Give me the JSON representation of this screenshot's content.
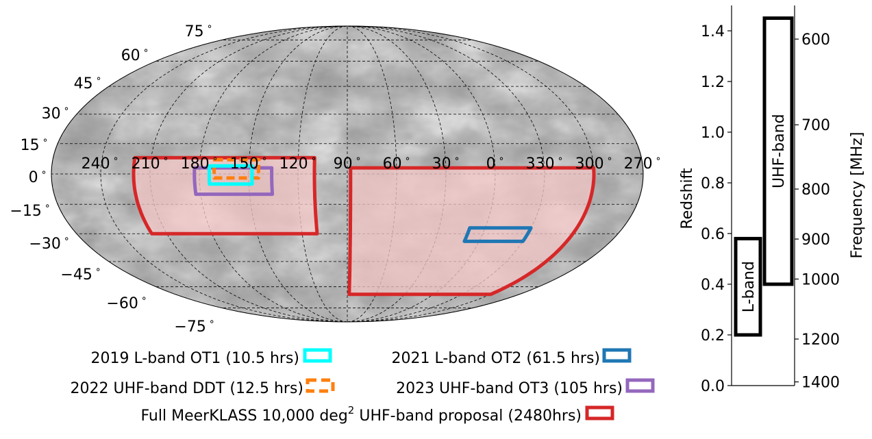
{
  "chart_data": [
    {
      "type": "sky-map",
      "projection": "mollweide",
      "dec_tick_labels": [
        "75",
        "60",
        "45",
        "30",
        "15",
        "0",
        "−15",
        "−30",
        "−45",
        "−60",
        "−75"
      ],
      "dec_tick_values": [
        75,
        60,
        45,
        30,
        15,
        0,
        -15,
        -30,
        -45,
        -60,
        -75
      ],
      "ra_tick_labels": [
        "240",
        "210",
        "180",
        "150",
        "120",
        "90",
        "60",
        "30",
        "0",
        "330",
        "300",
        "270"
      ],
      "ra_tick_values": [
        240,
        210,
        180,
        150,
        120,
        90,
        60,
        30,
        0,
        330,
        300,
        270
      ],
      "degree_symbol": "∘",
      "grid": true,
      "fields": [
        {
          "name": "2019 L-band OT1 (10.5 hrs)",
          "color": "#00ffff",
          "style": "solid",
          "ra": [
            174,
            148
          ],
          "dec": [
            -5,
            4
          ]
        },
        {
          "name": "2021 L-band OT2 (61.5 hrs)",
          "color": "#1f77b4",
          "style": "solid",
          "ra": [
            10,
            330
          ],
          "dec": [
            -34,
            -27
          ]
        },
        {
          "name": "2022 UHF-band DDT (12.5 hrs)",
          "color": "#ff7f0e",
          "style": "dashed",
          "ra": [
            171,
            144
          ],
          "dec": [
            -2,
            7
          ]
        },
        {
          "name": "2023 UHF-band OT3 (105 hrs)",
          "color": "#9467bd",
          "style": "solid",
          "ra": [
            183,
            136
          ],
          "dec": [
            -10,
            3
          ]
        },
        {
          "name": "Full MeerKLASS 10,000 deg² UHF-band proposal (2480hrs)",
          "color": "#d62728",
          "style": "solid",
          "fill": "#f4c7c7",
          "regions": [
            {
              "ra": [
                220,
                110
              ],
              "dec": [
                -30,
                8
              ]
            },
            {
              "ra": [
                88,
                300
              ],
              "dec": [
                -65,
                3
              ]
            }
          ]
        }
      ]
    },
    {
      "type": "bar",
      "ylabel": "Redshift",
      "ylim": [
        0.0,
        1.5
      ],
      "y_ticks": [
        "0.0",
        "0.2",
        "0.4",
        "0.6",
        "0.8",
        "1.0",
        "1.2",
        "1.4"
      ],
      "y_tick_values": [
        0.0,
        0.2,
        0.4,
        0.6,
        0.8,
        1.0,
        1.2,
        1.4
      ],
      "right_axis_label": "Frequency [MHz]",
      "right_ticks": [
        "600",
        "700",
        "800",
        "900",
        "1000",
        "1200",
        "1400"
      ],
      "right_tick_values": [
        600,
        700,
        800,
        900,
        1000,
        1200,
        1400
      ],
      "bars": [
        {
          "label": "L-band",
          "z_range": [
            0.2,
            0.58
          ]
        },
        {
          "label": "UHF-band",
          "z_range": [
            0.4,
            1.45
          ]
        }
      ]
    }
  ],
  "legend": [
    {
      "text": "2019 L-band OT1 (10.5 hrs)",
      "color": "#00ffff",
      "style": "solid"
    },
    {
      "text": "2021 L-band OT2 (61.5 hrs)",
      "color": "#1f77b4",
      "style": "solid"
    },
    {
      "text": "2022 UHF-band DDT (12.5 hrs)",
      "color": "#ff7f0e",
      "style": "dashed"
    },
    {
      "text": "2023 UHF-band OT3 (105 hrs)",
      "color": "#9467bd",
      "style": "solid"
    },
    {
      "text_main": "Full MeerKLASS 10,000 deg",
      "text_sup": "2",
      "text_rest": " UHF-band proposal (2480hrs)",
      "color": "#d62728",
      "style": "solid"
    }
  ]
}
